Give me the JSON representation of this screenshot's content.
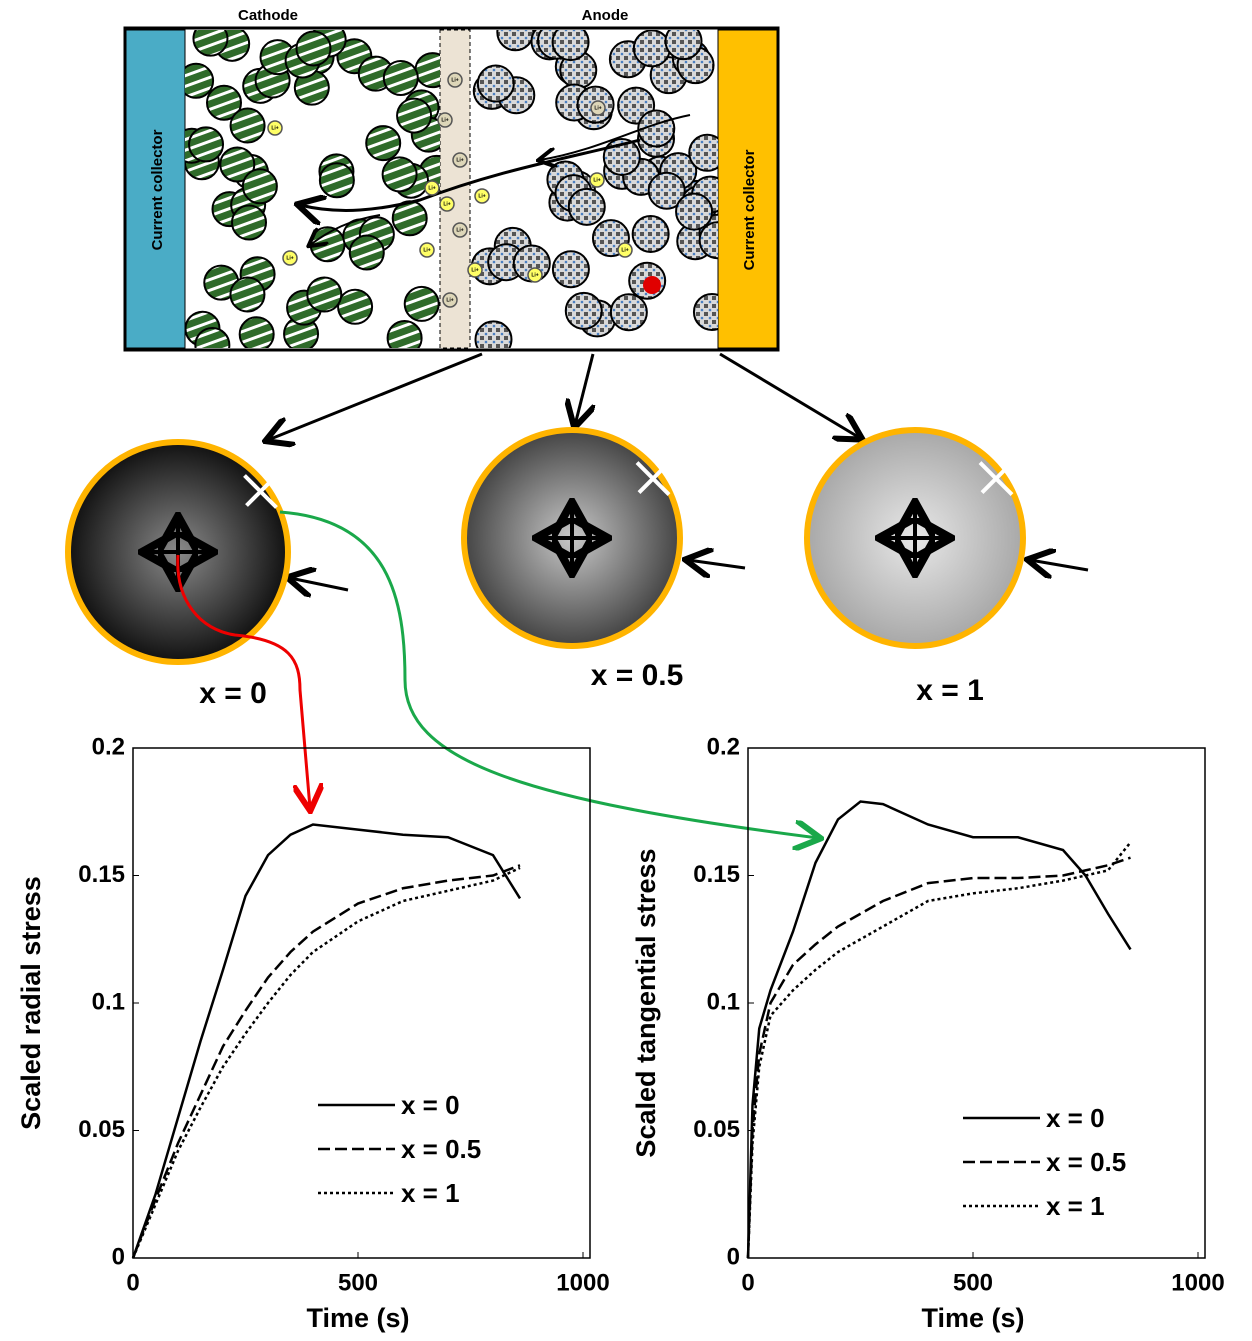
{
  "diagram": {
    "cathode": "Cathode",
    "anode": "Anode",
    "collector_left": "Current collector",
    "collector_right": "Current collector",
    "ion_label": "Li+",
    "particles": [
      "x = 0",
      "x = 0.5",
      "x = 1"
    ]
  },
  "chart_data": [
    {
      "type": "line",
      "xlabel": "Time (s)",
      "ylabel": "Scaled radial stress",
      "xlim": [
        0,
        1000
      ],
      "xticks": [
        0,
        500,
        1000
      ],
      "ylim": [
        0,
        0.2
      ],
      "yticks": [
        0,
        0.05,
        0.1,
        0.15,
        0.2
      ],
      "grid": false,
      "legend": "lower right",
      "x": [
        0,
        50,
        100,
        150,
        200,
        250,
        300,
        350,
        400,
        500,
        600,
        700,
        800,
        860
      ],
      "series": [
        {
          "name": "x = 0",
          "color": "#000000",
          "dash": "solid",
          "values": [
            0,
            0.025,
            0.055,
            0.085,
            0.113,
            0.142,
            0.158,
            0.166,
            0.17,
            0.168,
            0.166,
            0.165,
            0.158,
            0.141
          ]
        },
        {
          "name": "x = 0.5",
          "color": "#000000",
          "dash": "dashed",
          "values": [
            0,
            0.023,
            0.045,
            0.064,
            0.083,
            0.097,
            0.11,
            0.12,
            0.128,
            0.139,
            0.145,
            0.148,
            0.15,
            0.154
          ]
        },
        {
          "name": "x = 1",
          "color": "#000000",
          "dash": "dotted",
          "values": [
            0,
            0.021,
            0.042,
            0.059,
            0.075,
            0.088,
            0.1,
            0.111,
            0.12,
            0.132,
            0.14,
            0.144,
            0.148,
            0.153
          ]
        }
      ]
    },
    {
      "type": "line",
      "xlabel": "Time (s)",
      "ylabel": "Scaled tangential stress",
      "xlim": [
        0,
        1000
      ],
      "xticks": [
        0,
        500,
        1000
      ],
      "ylim": [
        0,
        0.2
      ],
      "yticks": [
        0,
        0.05,
        0.1,
        0.15,
        0.2
      ],
      "grid": false,
      "legend": "lower right",
      "x": [
        0,
        10,
        25,
        50,
        100,
        150,
        200,
        250,
        300,
        400,
        500,
        600,
        700,
        750,
        800,
        850
      ],
      "series": [
        {
          "name": "x = 0",
          "color": "#000000",
          "dash": "solid",
          "values": [
            0,
            0.06,
            0.09,
            0.105,
            0.128,
            0.155,
            0.172,
            0.179,
            0.178,
            0.17,
            0.165,
            0.165,
            0.16,
            0.15,
            0.135,
            0.121
          ]
        },
        {
          "name": "x = 0.5",
          "color": "#000000",
          "dash": "dashed",
          "values": [
            0,
            0.05,
            0.08,
            0.1,
            0.115,
            0.123,
            0.13,
            0.135,
            0.14,
            0.147,
            0.149,
            0.149,
            0.15,
            0.152,
            0.154,
            0.157
          ]
        },
        {
          "name": "x = 1",
          "color": "#000000",
          "dash": "dotted",
          "values": [
            0,
            0.045,
            0.075,
            0.095,
            0.105,
            0.113,
            0.12,
            0.125,
            0.13,
            0.14,
            0.143,
            0.145,
            0.148,
            0.15,
            0.152,
            0.163
          ]
        }
      ]
    }
  ]
}
